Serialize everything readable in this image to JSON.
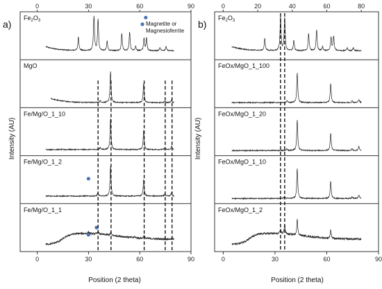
{
  "chart_data": [
    {
      "panel_label": "a)",
      "type": "line",
      "xlabel": "Position (2 theta)",
      "ylabel": "Intensity (AU)",
      "xlim": [
        -10,
        90
      ],
      "xticks": [
        0,
        30,
        60,
        90
      ],
      "xticks_top": [
        0,
        30,
        60,
        90
      ],
      "dashed_lines_x": [
        35.6,
        43.2,
        62.6,
        74.9,
        78.9
      ],
      "legend": {
        "marker_color": "#4a74b7",
        "label": "Magnetite or Magnesioferrite"
      },
      "series": [
        {
          "name": "Fe",
          "name_sub": "2",
          "name_rest": "O",
          "name_sub2": "3",
          "x_start": 5,
          "x_end": 80,
          "baseline_fraction": 0.18,
          "background": "decay",
          "peaks": [
            {
              "x": 24.1,
              "h": 0.4
            },
            {
              "x": 33.2,
              "h": 1.0
            },
            {
              "x": 35.6,
              "h": 0.9
            },
            {
              "x": 40.9,
              "h": 0.28
            },
            {
              "x": 49.5,
              "h": 0.5
            },
            {
              "x": 54.1,
              "h": 0.55
            },
            {
              "x": 57.6,
              "h": 0.12
            },
            {
              "x": 62.5,
              "h": 0.35
            },
            {
              "x": 64.0,
              "h": 0.38
            },
            {
              "x": 71.9,
              "h": 0.1
            },
            {
              "x": 75.4,
              "h": 0.12
            }
          ],
          "markers": [
            {
              "x": 63.5,
              "level": 0.88
            }
          ]
        },
        {
          "name": "MgO",
          "x_start": 8,
          "x_end": 80,
          "baseline_fraction": 0.1,
          "background": "decay",
          "peaks": [
            {
              "x": 36.9,
              "h": 0.05
            },
            {
              "x": 42.9,
              "h": 0.9
            },
            {
              "x": 62.3,
              "h": 0.55
            },
            {
              "x": 74.7,
              "h": 0.04
            },
            {
              "x": 78.6,
              "h": 0.08
            }
          ],
          "markers": []
        },
        {
          "name": "Fe/Mg/O_1_10",
          "x_start": 5,
          "x_end": 80,
          "baseline_fraction": 0.12,
          "background": "flat",
          "peaks": [
            {
              "x": 36.9,
              "h": 0.06
            },
            {
              "x": 42.9,
              "h": 0.9
            },
            {
              "x": 62.3,
              "h": 0.55
            },
            {
              "x": 74.7,
              "h": 0.05
            },
            {
              "x": 78.6,
              "h": 0.1
            }
          ],
          "markers": []
        },
        {
          "name": "Fe/Mg/O_1_2",
          "x_start": 5,
          "x_end": 80,
          "baseline_fraction": 0.15,
          "background": "flat",
          "peaks": [
            {
              "x": 35.5,
              "h": 0.1
            },
            {
              "x": 42.9,
              "h": 0.88
            },
            {
              "x": 62.3,
              "h": 0.48
            },
            {
              "x": 74.7,
              "h": 0.06
            },
            {
              "x": 78.6,
              "h": 0.1
            }
          ],
          "markers": [
            {
              "x": 30.0,
              "level": 0.52
            }
          ]
        },
        {
          "name": "Fe/Mg/O_1_1",
          "x_start": 5,
          "x_end": 80,
          "baseline_fraction": 0.15,
          "background": "hump",
          "peaks": [
            {
              "x": 30.1,
              "h": 0.05
            },
            {
              "x": 35.6,
              "h": 0.1
            },
            {
              "x": 43.1,
              "h": 0.08
            },
            {
              "x": 57.0,
              "h": 0.03
            },
            {
              "x": 62.5,
              "h": 0.08
            }
          ],
          "markers": [
            {
              "x": 30.0,
              "level": 0.35
            },
            {
              "x": 34.7,
              "level": 0.5
            }
          ]
        }
      ]
    },
    {
      "panel_label": "b)",
      "type": "line",
      "xlabel": "Position (2 theta)",
      "ylabel": "Intensity (AU)",
      "xlim": [
        -5,
        90
      ],
      "xticks": [
        0,
        30,
        60,
        90
      ],
      "xticks_top": [
        0,
        20,
        40,
        60,
        80
      ],
      "dashed_lines_x": [
        33.2,
        35.6
      ],
      "series": [
        {
          "name": "Fe",
          "name_sub": "2",
          "name_rest": "O",
          "name_sub2": "3",
          "x_start": 5,
          "x_end": 80,
          "baseline_fraction": 0.18,
          "background": "decay",
          "peaks": [
            {
              "x": 24.1,
              "h": 0.35
            },
            {
              "x": 33.2,
              "h": 1.0
            },
            {
              "x": 35.6,
              "h": 0.95
            },
            {
              "x": 40.9,
              "h": 0.3
            },
            {
              "x": 49.5,
              "h": 0.5
            },
            {
              "x": 54.1,
              "h": 0.6
            },
            {
              "x": 57.6,
              "h": 0.12
            },
            {
              "x": 62.5,
              "h": 0.4
            },
            {
              "x": 64.0,
              "h": 0.42
            },
            {
              "x": 71.9,
              "h": 0.08
            },
            {
              "x": 75.4,
              "h": 0.1
            }
          ],
          "markers": []
        },
        {
          "name": "FeOx/MgO_1_100",
          "x_start": 5,
          "x_end": 80,
          "baseline_fraction": 0.1,
          "background": "flat",
          "peaks": [
            {
              "x": 36.9,
              "h": 0.05
            },
            {
              "x": 42.9,
              "h": 0.85
            },
            {
              "x": 62.3,
              "h": 0.55
            },
            {
              "x": 74.7,
              "h": 0.05
            },
            {
              "x": 78.6,
              "h": 0.1
            }
          ],
          "markers": []
        },
        {
          "name": "FeOx/MgO_1_20",
          "x_start": 5,
          "x_end": 80,
          "baseline_fraction": 0.1,
          "background": "flat",
          "peaks": [
            {
              "x": 36.9,
              "h": 0.05
            },
            {
              "x": 42.9,
              "h": 0.88
            },
            {
              "x": 62.3,
              "h": 0.5
            },
            {
              "x": 74.7,
              "h": 0.05
            },
            {
              "x": 78.6,
              "h": 0.12
            }
          ],
          "markers": []
        },
        {
          "name": "FeOx/MgO_1_10",
          "x_start": 5,
          "x_end": 80,
          "baseline_fraction": 0.1,
          "background": "flat",
          "peaks": [
            {
              "x": 35.5,
              "h": 0.05
            },
            {
              "x": 42.9,
              "h": 0.88
            },
            {
              "x": 62.3,
              "h": 0.5
            },
            {
              "x": 74.7,
              "h": 0.05
            },
            {
              "x": 78.6,
              "h": 0.1
            }
          ],
          "markers": []
        },
        {
          "name": "FeOx/MgO_1_2",
          "x_start": 5,
          "x_end": 80,
          "baseline_fraction": 0.15,
          "background": "hump",
          "peaks": [
            {
              "x": 33.2,
              "h": 0.12
            },
            {
              "x": 35.6,
              "h": 0.3
            },
            {
              "x": 42.9,
              "h": 0.45
            },
            {
              "x": 62.3,
              "h": 0.25
            }
          ],
          "markers": []
        }
      ]
    }
  ]
}
